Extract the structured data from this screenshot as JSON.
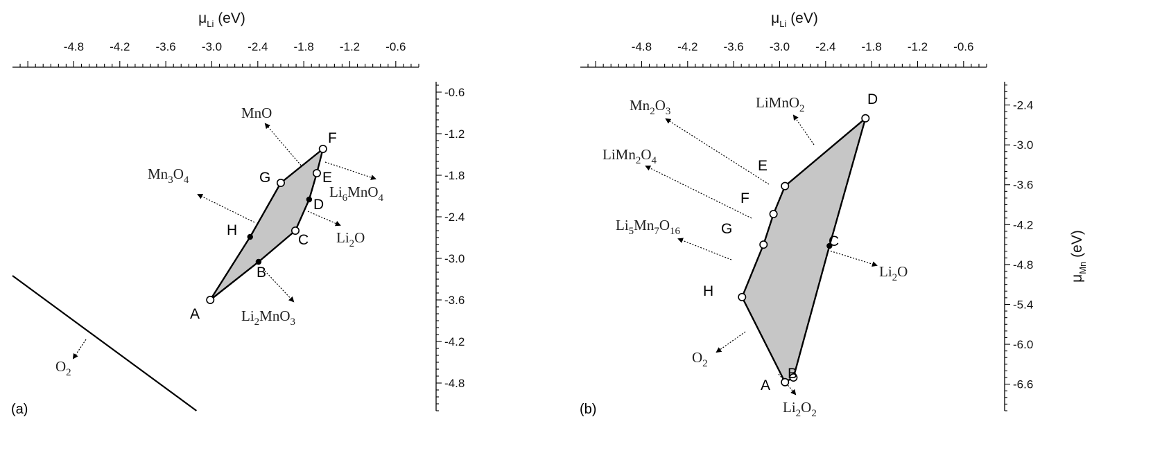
{
  "chart_data": [
    {
      "type": "diagram",
      "panel_label": "(a)",
      "xlabel": "μ",
      "xlabel_sub": "Li",
      "xlabel_unit": "(eV)",
      "xlim": [
        -5.6,
        -0.3
      ],
      "ylim": [
        -5.2,
        -0.45
      ],
      "xticks": [
        "-4.8",
        "-4.2",
        "-3.6",
        "-3.0",
        "-2.4",
        "-1.8",
        "-1.2",
        "-0.6"
      ],
      "xtick_values": [
        -4.8,
        -4.2,
        -3.6,
        -3.0,
        -2.4,
        -1.8,
        -1.2,
        -0.6
      ],
      "yticks": [
        "-0.6",
        "-1.2",
        "-1.8",
        "-2.4",
        "-3.0",
        "-3.6",
        "-4.2",
        "-4.8"
      ],
      "ytick_values": [
        -0.6,
        -1.2,
        -1.8,
        -2.4,
        -3.0,
        -3.6,
        -4.2,
        -4.8
      ],
      "vertices": [
        {
          "label": "A",
          "x": -3.02,
          "y": -3.6,
          "marker": "open"
        },
        {
          "label": "B",
          "x": -2.39,
          "y": -3.05,
          "marker": "filled"
        },
        {
          "label": "C",
          "x": -1.91,
          "y": -2.6,
          "marker": "open"
        },
        {
          "label": "D",
          "x": -1.73,
          "y": -2.15,
          "marker": "filled"
        },
        {
          "label": "E",
          "x": -1.63,
          "y": -1.77,
          "marker": "open"
        },
        {
          "label": "F",
          "x": -1.55,
          "y": -1.42,
          "marker": "open"
        },
        {
          "label": "G",
          "x": -2.1,
          "y": -1.91,
          "marker": "open"
        },
        {
          "label": "H",
          "x": -2.5,
          "y": -2.69,
          "marker": "filled"
        }
      ],
      "phases": [
        {
          "pre": "MnO",
          "sub": "",
          "post": ""
        },
        {
          "pre": "Mn",
          "sub": "3",
          "post": "O",
          "sub2": "4"
        },
        {
          "pre": "Li",
          "sub": "6",
          "post": "MnO",
          "sub2": "4"
        },
        {
          "pre": "Li",
          "sub": "2",
          "post": "O"
        },
        {
          "pre": "Li",
          "sub": "2",
          "post": "MnO",
          "sub2": "3"
        },
        {
          "pre": "O",
          "sub": "2",
          "post": ""
        }
      ],
      "o2_boundary": {
        "x": [
          -5.6,
          -3.2
        ],
        "y": [
          -3.25,
          -5.2
        ]
      }
    },
    {
      "type": "diagram",
      "panel_label": "(b)",
      "xlabel": "μ",
      "xlabel_sub": "Li",
      "xlabel_unit": "(eV)",
      "ylabel": "μ",
      "ylabel_sub": "Mn",
      "ylabel_unit": "(eV)",
      "xlim": [
        -5.6,
        -0.3
      ],
      "ylim": [
        -7.0,
        -2.05
      ],
      "xticks": [
        "-4.8",
        "-4.2",
        "-3.6",
        "-3.0",
        "-2.4",
        "-1.8",
        "-1.2",
        "-0.6"
      ],
      "xtick_values": [
        -4.8,
        -4.2,
        -3.6,
        -3.0,
        -2.4,
        -1.8,
        -1.2,
        -0.6
      ],
      "yticks": [
        "-2.4",
        "-3.0",
        "-3.6",
        "-4.2",
        "-4.8",
        "-5.4",
        "-6.0",
        "-6.6"
      ],
      "ytick_values": [
        -2.4,
        -3.0,
        -3.6,
        -4.2,
        -4.8,
        -5.4,
        -6.0,
        -6.6
      ],
      "vertices": [
        {
          "label": "A",
          "x": -2.93,
          "y": -6.57,
          "marker": "open"
        },
        {
          "label": "B",
          "x": -2.82,
          "y": -6.5,
          "marker": "open"
        },
        {
          "label": "C",
          "x": -2.35,
          "y": -4.52,
          "marker": "filled"
        },
        {
          "label": "D",
          "x": -1.88,
          "y": -2.6,
          "marker": "open"
        },
        {
          "label": "E",
          "x": -2.93,
          "y": -3.62,
          "marker": "open"
        },
        {
          "label": "F",
          "x": -3.08,
          "y": -4.04,
          "marker": "open"
        },
        {
          "label": "G",
          "x": -3.21,
          "y": -4.5,
          "marker": "open"
        },
        {
          "label": "H",
          "x": -3.49,
          "y": -5.29,
          "marker": "open"
        }
      ],
      "phases": [
        {
          "pre": "Mn",
          "sub": "2",
          "post": "O",
          "sub2": "3"
        },
        {
          "pre": "LiMnO",
          "sub": "2",
          "post": ""
        },
        {
          "pre": "LiMn",
          "sub": "2",
          "post": "O",
          "sub2": "4"
        },
        {
          "pre": "Li",
          "sub": "5",
          "post": "Mn",
          "sub2": "7",
          "post2": "O",
          "sub3": "16"
        },
        {
          "pre": "Li",
          "sub": "2",
          "post": "O"
        },
        {
          "pre": "O",
          "sub": "2",
          "post": ""
        },
        {
          "pre": "Li",
          "sub": "2",
          "post": "O",
          "sub2": "2"
        }
      ]
    }
  ],
  "colors": {
    "region": "#c6c6c6",
    "stroke": "#000000"
  }
}
